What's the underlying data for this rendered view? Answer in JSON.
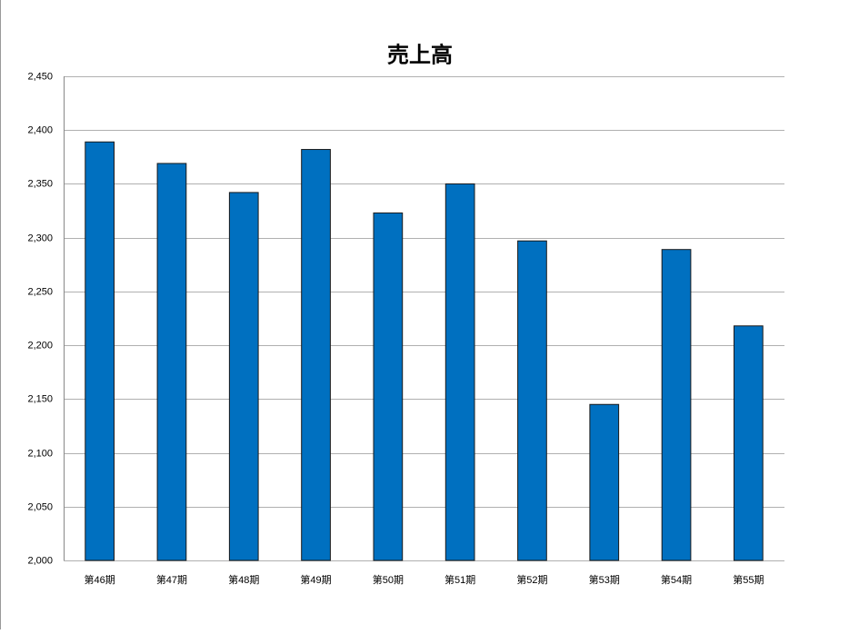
{
  "chart_data": {
    "type": "bar",
    "title": "売上高",
    "categories": [
      "第46期",
      "第47期",
      "第48期",
      "第49期",
      "第50期",
      "第51期",
      "第52期",
      "第53期",
      "第54期",
      "第55期"
    ],
    "values": [
      2389,
      2369,
      2342,
      2382,
      2323,
      2350,
      2297,
      2145,
      2289,
      2218
    ],
    "color": "#0070c0",
    "ylim": [
      2000,
      2450
    ],
    "yticks": [
      {
        "value": 2000,
        "label": "2,000"
      },
      {
        "value": 2050,
        "label": "2,050"
      },
      {
        "value": 2100,
        "label": "2,100"
      },
      {
        "value": 2150,
        "label": "2,150"
      },
      {
        "value": 2200,
        "label": "2,200"
      },
      {
        "value": 2250,
        "label": "2,250"
      },
      {
        "value": 2300,
        "label": "2,300"
      },
      {
        "value": 2350,
        "label": "2,350"
      },
      {
        "value": 2400,
        "label": "2,400"
      },
      {
        "value": 2450,
        "label": "2,450"
      }
    ],
    "grid": true
  }
}
